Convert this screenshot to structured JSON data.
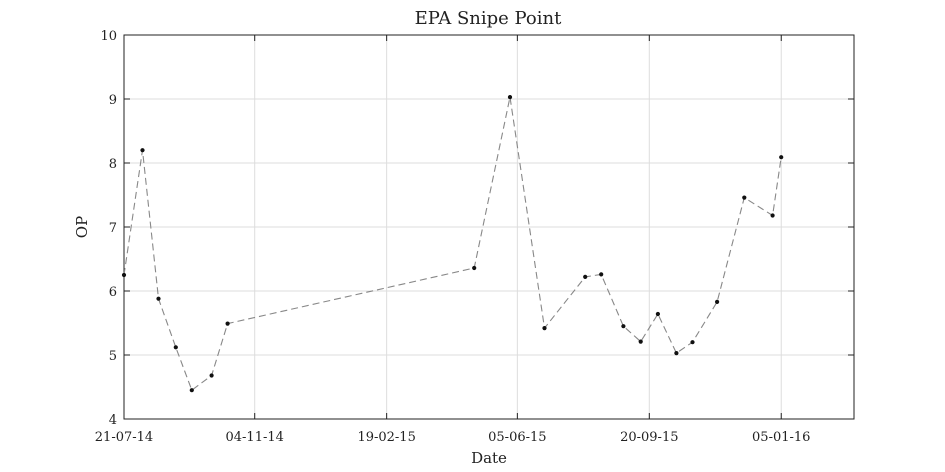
{
  "chart_data": {
    "type": "line",
    "title": "EPA Snipe Point",
    "xlabel": "Date",
    "ylabel": "OP",
    "ylim": [
      4,
      10
    ],
    "xlim": [
      "2014-07-21",
      "2016-03-04"
    ],
    "grid": true,
    "legend": "none",
    "x_ticks": [
      "21-07-14",
      "04-11-14",
      "19-02-15",
      "05-06-15",
      "20-09-15",
      "05-01-16"
    ],
    "x_tick_dates": [
      "2014-07-21",
      "2014-11-04",
      "2015-02-19",
      "2015-06-05",
      "2015-09-20",
      "2016-01-05"
    ],
    "y_ticks": [
      4,
      5,
      6,
      7,
      8,
      9,
      10
    ],
    "series": [
      {
        "line_color": "#888888",
        "marker_color": "#111111",
        "line_style": "dashed",
        "x": [
          "2014-07-21",
          "2014-08-05",
          "2014-08-18",
          "2014-09-01",
          "2014-09-14",
          "2014-09-30",
          "2014-10-13",
          "2015-05-01",
          "2015-05-30",
          "2015-06-27",
          "2015-07-30",
          "2015-08-12",
          "2015-08-30",
          "2015-09-13",
          "2015-09-27",
          "2015-10-12",
          "2015-10-25",
          "2015-11-14",
          "2015-12-06",
          "2015-12-29",
          "2016-01-05"
        ],
        "values": [
          6.25,
          8.2,
          5.88,
          5.12,
          4.45,
          4.68,
          5.49,
          6.36,
          9.03,
          5.42,
          6.22,
          6.26,
          5.45,
          5.21,
          5.64,
          5.03,
          5.2,
          5.83,
          7.46,
          7.18,
          8.09
        ]
      }
    ]
  }
}
